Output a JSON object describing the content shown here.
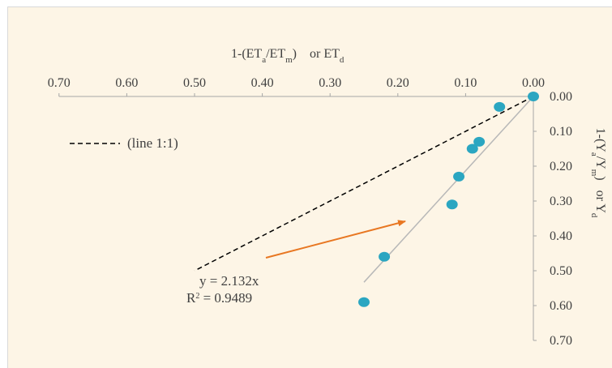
{
  "chart_data": {
    "type": "scatter",
    "x_axis": {
      "label_parts": [
        "1-(ET",
        "a",
        "/ET",
        "m",
        ")    or ET",
        "d"
      ],
      "range": [
        0.7,
        0.0
      ],
      "reversed": true,
      "position": "top",
      "ticks": [
        "0.70",
        "0.60",
        "0.50",
        "0.40",
        "0.30",
        "0.20",
        "0.10",
        "0.00"
      ]
    },
    "y_axis": {
      "label_parts": [
        "1-(Y",
        "a",
        "/Y",
        "m",
        ")   or Y",
        "d"
      ],
      "range": [
        0.0,
        0.7
      ],
      "reversed": true,
      "position": "right",
      "ticks": [
        "0.00",
        "0.10",
        "0.20",
        "0.30",
        "0.40",
        "0.50",
        "0.60",
        "0.70"
      ]
    },
    "points": [
      {
        "x": 0.0,
        "y": 0.0
      },
      {
        "x": 0.05,
        "y": 0.03
      },
      {
        "x": 0.08,
        "y": 0.13
      },
      {
        "x": 0.09,
        "y": 0.15
      },
      {
        "x": 0.11,
        "y": 0.23
      },
      {
        "x": 0.12,
        "y": 0.31
      },
      {
        "x": 0.22,
        "y": 0.46
      },
      {
        "x": 0.25,
        "y": 0.59
      }
    ],
    "trendline": {
      "x_from": 0.0,
      "x_to": 0.25,
      "slope": 2.132
    },
    "reference_line": {
      "from": [
        0.0,
        0.0
      ],
      "to": [
        0.5,
        0.5
      ],
      "style": "dashed"
    },
    "legend_text": "(line 1:1)",
    "annotation": {
      "equation": "y = 2.132x",
      "r2_prefix": "R",
      "r2_sup": "2",
      "r2_value": " = 0.9489"
    },
    "colors": {
      "background": "#fdf5e6",
      "point": "#2ba6c1",
      "trendline": "#b8b8b8",
      "reference_line": "#000000",
      "arrow": "#e87722",
      "axis": "#a6a6a6",
      "text": "#404040"
    }
  }
}
